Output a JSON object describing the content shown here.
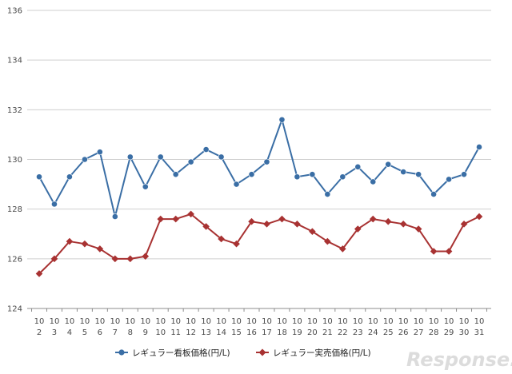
{
  "chart_data": {
    "type": "line",
    "title": "",
    "xlabel": "",
    "ylabel": "",
    "ylim": [
      124,
      136
    ],
    "yticks": [
      "124",
      "126",
      "128",
      "130",
      "132",
      "134",
      "136"
    ],
    "categories": [
      {
        "month": "10",
        "day": "2"
      },
      {
        "month": "10",
        "day": "3"
      },
      {
        "month": "10",
        "day": "4"
      },
      {
        "month": "10",
        "day": "5"
      },
      {
        "month": "10",
        "day": "6"
      },
      {
        "month": "10",
        "day": "7"
      },
      {
        "month": "10",
        "day": "8"
      },
      {
        "month": "10",
        "day": "9"
      },
      {
        "month": "10",
        "day": "10"
      },
      {
        "month": "10",
        "day": "11"
      },
      {
        "month": "10",
        "day": "12"
      },
      {
        "month": "10",
        "day": "13"
      },
      {
        "month": "10",
        "day": "14"
      },
      {
        "month": "10",
        "day": "15"
      },
      {
        "month": "10",
        "day": "16"
      },
      {
        "month": "10",
        "day": "17"
      },
      {
        "month": "10",
        "day": "18"
      },
      {
        "month": "10",
        "day": "19"
      },
      {
        "month": "10",
        "day": "20"
      },
      {
        "month": "10",
        "day": "21"
      },
      {
        "month": "10",
        "day": "22"
      },
      {
        "month": "10",
        "day": "23"
      },
      {
        "month": "10",
        "day": "24"
      },
      {
        "month": "10",
        "day": "25"
      },
      {
        "month": "10",
        "day": "26"
      },
      {
        "month": "10",
        "day": "27"
      },
      {
        "month": "10",
        "day": "28"
      },
      {
        "month": "10",
        "day": "29"
      },
      {
        "month": "10",
        "day": "30"
      },
      {
        "month": "10",
        "day": "31"
      }
    ],
    "series": [
      {
        "name": "レギュラー看板価格(円/L)",
        "color": "#3a6ea5",
        "marker": "circle",
        "values": [
          129.3,
          128.2,
          129.3,
          130.0,
          130.3,
          127.7,
          130.1,
          128.9,
          130.1,
          129.4,
          129.9,
          130.4,
          130.1,
          129.0,
          129.4,
          129.9,
          131.6,
          129.3,
          129.4,
          128.6,
          129.3,
          129.7,
          129.1,
          129.8,
          129.5,
          129.4,
          128.6,
          129.2,
          129.4,
          130.5
        ]
      },
      {
        "name": "レギュラー実売価格(円/L)",
        "color": "#a83232",
        "marker": "diamond",
        "values": [
          125.4,
          126.0,
          126.7,
          126.6,
          126.4,
          126.0,
          126.0,
          126.1,
          127.6,
          127.6,
          127.8,
          127.3,
          126.8,
          126.6,
          127.5,
          127.4,
          127.6,
          127.4,
          127.1,
          126.7,
          126.4,
          127.2,
          127.6,
          127.5,
          127.4,
          127.2,
          126.3,
          126.3,
          127.4,
          127.7
        ]
      }
    ],
    "legend_position": "bottom",
    "grid": true
  },
  "watermark": {
    "text": "Response."
  },
  "colors": {
    "grid": "#cfcfcf",
    "axis": "#8c8c8c"
  }
}
